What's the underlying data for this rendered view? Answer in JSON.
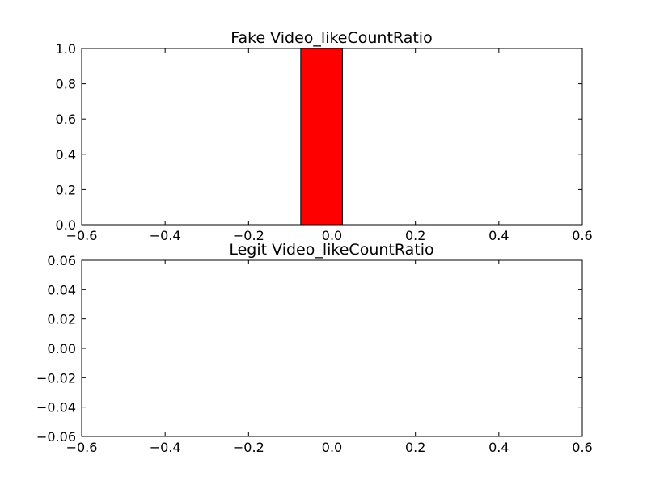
{
  "chart_data": [
    {
      "type": "bar",
      "title": "Fake Video_likeCountRatio",
      "xlabel": "",
      "ylabel": "",
      "xlim": [
        -0.6,
        0.6
      ],
      "ylim": [
        0.0,
        1.0
      ],
      "x_ticks": [
        "−0.6",
        "−0.4",
        "−0.2",
        "0.0",
        "0.2",
        "0.4",
        "0.6"
      ],
      "y_ticks": [
        "0.0",
        "0.2",
        "0.4",
        "0.6",
        "0.8",
        "1.0"
      ],
      "grid": false,
      "colors": {
        "bar": "#ff0000",
        "edge": "#000000"
      },
      "bins": [
        {
          "x0": -0.475,
          "x1": -0.375,
          "value": 0
        },
        {
          "x0": -0.375,
          "x1": -0.275,
          "value": 0
        },
        {
          "x0": -0.275,
          "x1": -0.175,
          "value": 0
        },
        {
          "x0": -0.175,
          "x1": -0.075,
          "value": 0
        },
        {
          "x0": -0.075,
          "x1": 0.025,
          "value": 1.0
        },
        {
          "x0": 0.025,
          "x1": 0.125,
          "value": 0
        },
        {
          "x0": 0.125,
          "x1": 0.225,
          "value": 0
        },
        {
          "x0": 0.225,
          "x1": 0.325,
          "value": 0
        },
        {
          "x0": 0.325,
          "x1": 0.425,
          "value": 0
        },
        {
          "x0": 0.425,
          "x1": 0.525,
          "value": 0
        }
      ]
    },
    {
      "type": "bar",
      "title": "Legit Video_likeCountRatio",
      "xlabel": "",
      "ylabel": "",
      "xlim": [
        -0.6,
        0.6
      ],
      "ylim": [
        -0.06,
        0.06
      ],
      "x_ticks": [
        "−0.6",
        "−0.4",
        "−0.2",
        "0.0",
        "0.2",
        "0.4",
        "0.6"
      ],
      "y_ticks": [
        "−0.06",
        "−0.04",
        "−0.02",
        "0.00",
        "0.02",
        "0.04",
        "0.06"
      ],
      "grid": false,
      "colors": {
        "bar": "#ff0000",
        "edge": "#000000"
      },
      "bins": [
        {
          "x0": -0.475,
          "x1": -0.375,
          "value": 0
        },
        {
          "x0": -0.375,
          "x1": -0.275,
          "value": 0
        },
        {
          "x0": -0.275,
          "x1": -0.175,
          "value": 0
        },
        {
          "x0": -0.175,
          "x1": -0.075,
          "value": 0
        },
        {
          "x0": -0.075,
          "x1": 0.025,
          "value": 0
        },
        {
          "x0": 0.025,
          "x1": 0.125,
          "value": 0
        },
        {
          "x0": 0.125,
          "x1": 0.225,
          "value": 0
        },
        {
          "x0": 0.225,
          "x1": 0.325,
          "value": 0
        },
        {
          "x0": 0.325,
          "x1": 0.425,
          "value": 0
        },
        {
          "x0": 0.425,
          "x1": 0.525,
          "value": 0
        }
      ]
    }
  ]
}
